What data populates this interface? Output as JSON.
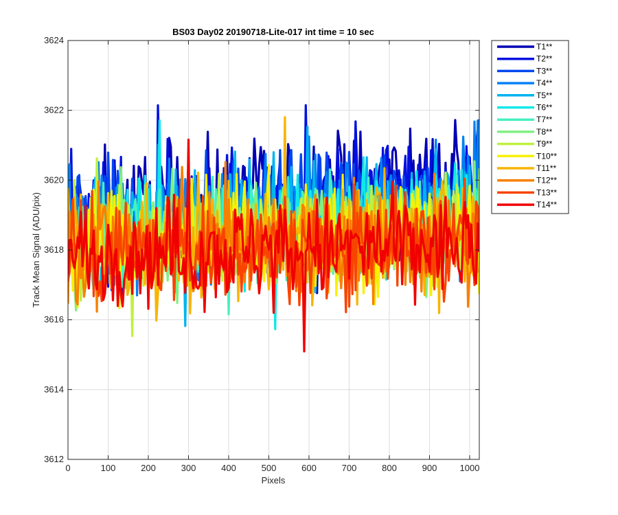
{
  "chart_data": {
    "type": "line",
    "title": "BS03 Day02 20190718-Lite-017 int time = 10 sec",
    "xlabel": "Pixels",
    "ylabel": "Track Mean Signal (ADU/pix)",
    "xlim": [
      0,
      1024
    ],
    "ylim": [
      3612,
      3624
    ],
    "xticks": [
      0,
      100,
      200,
      300,
      400,
      500,
      600,
      700,
      800,
      900,
      1000
    ],
    "yticks": [
      3612,
      3614,
      3616,
      3618,
      3620,
      3622,
      3624
    ],
    "grid": true,
    "legend_position": "outside-top-right",
    "x_step": 4,
    "series": [
      {
        "name": "T1**",
        "color": "#0000b4",
        "mean_start": 3618.9,
        "mean_end": 3619.9,
        "spread": 1.2
      },
      {
        "name": "T2**",
        "color": "#0010e0",
        "mean_start": 3618.8,
        "mean_end": 3619.6,
        "spread": 1.15
      },
      {
        "name": "T3**",
        "color": "#0046f0",
        "mean_start": 3618.7,
        "mean_end": 3619.4,
        "spread": 1.1
      },
      {
        "name": "T4**",
        "color": "#0080f4",
        "mean_start": 3618.6,
        "mean_end": 3619.2,
        "spread": 1.1
      },
      {
        "name": "T5**",
        "color": "#00b4f0",
        "mean_start": 3618.5,
        "mean_end": 3619.0,
        "spread": 1.05
      },
      {
        "name": "T6**",
        "color": "#10e8e8",
        "mean_start": 3618.4,
        "mean_end": 3618.9,
        "spread": 1.0
      },
      {
        "name": "T7**",
        "color": "#46f0c0",
        "mean_start": 3618.3,
        "mean_end": 3618.8,
        "spread": 1.0
      },
      {
        "name": "T8**",
        "color": "#80f080",
        "mean_start": 3618.2,
        "mean_end": 3618.7,
        "spread": 1.0
      },
      {
        "name": "T9**",
        "color": "#c0f040",
        "mean_start": 3618.2,
        "mean_end": 3618.6,
        "spread": 1.0
      },
      {
        "name": "T10**",
        "color": "#f8f000",
        "mean_start": 3618.1,
        "mean_end": 3618.5,
        "spread": 1.05
      },
      {
        "name": "T11**",
        "color": "#f8b400",
        "mean_start": 3618.0,
        "mean_end": 3618.4,
        "spread": 1.1
      },
      {
        "name": "T12**",
        "color": "#f88000",
        "mean_start": 3618.0,
        "mean_end": 3618.3,
        "spread": 1.05
      },
      {
        "name": "T13**",
        "color": "#f84400",
        "mean_start": 3617.9,
        "mean_end": 3618.2,
        "spread": 1.0
      },
      {
        "name": "T14**",
        "color": "#f00000",
        "mean_start": 3617.9,
        "mean_end": 3618.1,
        "spread": 1.0
      }
    ]
  }
}
